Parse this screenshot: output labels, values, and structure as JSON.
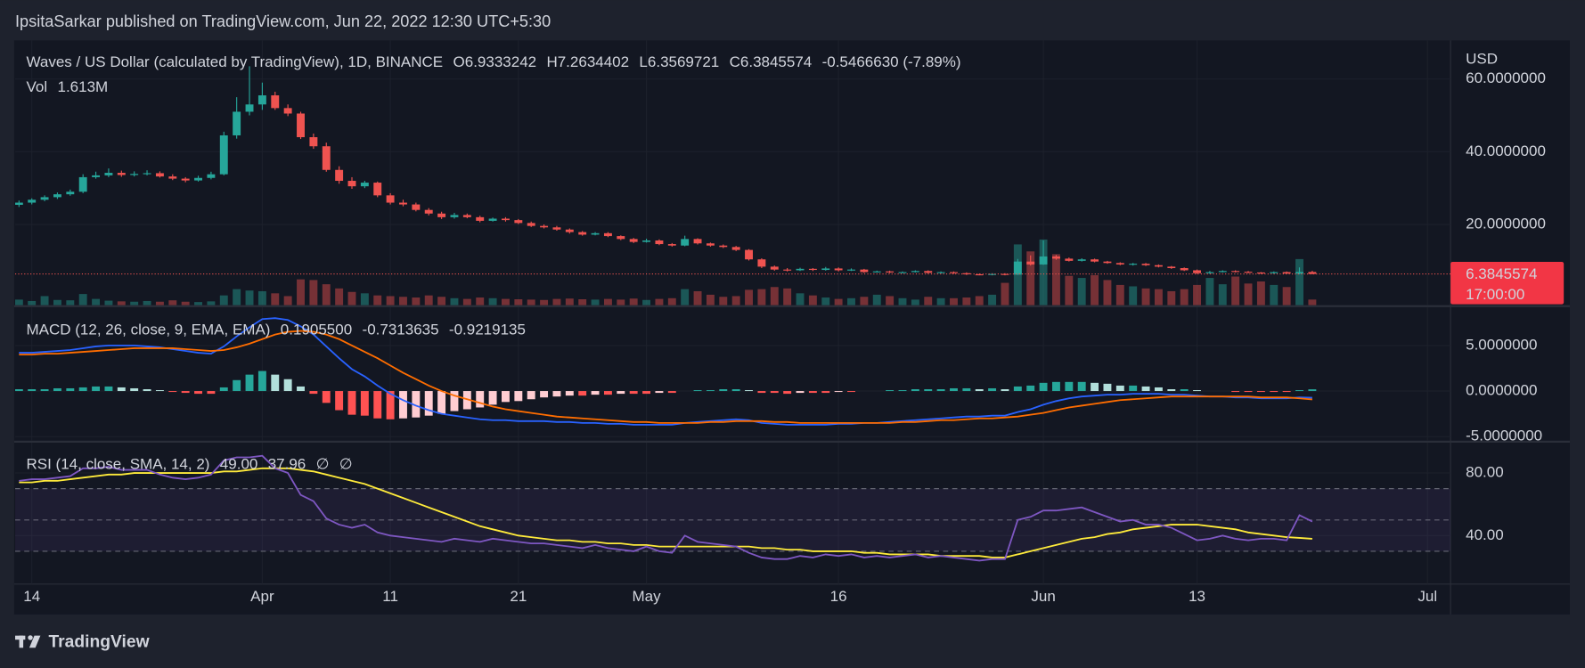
{
  "header": {
    "text": "IpsitaSarkar published on TradingView.com, Jun 22, 2022 12:30 UTC+5:30"
  },
  "footer": {
    "brand": "TradingView"
  },
  "chart_data": [
    {
      "type": "candlestick",
      "title": "Waves / US Dollar (calculated by TradingView), 1D, BINANCE",
      "legend_values": [
        "O6.9333242",
        "H7.2634402",
        "L6.3569721",
        "C6.3845574",
        "-0.5466630 (-7.89%)"
      ],
      "legend_colors": [
        "#f23645",
        "#f23645",
        "#f23645",
        "#f23645",
        "#f23645"
      ],
      "currency": "USD",
      "up_color": "#26a69a",
      "down_color": "#ef5350",
      "open": [
        25.4,
        26.0,
        26.8,
        27.5,
        28.3,
        29.0,
        33.0,
        33.5,
        34.2,
        33.6,
        33.9,
        34.1,
        33.2,
        32.6,
        32.1,
        32.8,
        33.8,
        44.5,
        51.0,
        53.0,
        55.5,
        52.0,
        50.5,
        44.0,
        41.5,
        35.0,
        32.0,
        30.5,
        31.5,
        28.0,
        26.0,
        25.5,
        24.0,
        23.0,
        22.0,
        22.6,
        22.0,
        21.0,
        21.6,
        21.2,
        20.4,
        19.6,
        19.2,
        18.6,
        17.9,
        17.2,
        17.6,
        16.8,
        16.0,
        15.2,
        15.6,
        14.6,
        14.2,
        16.0,
        14.8,
        14.2,
        13.8,
        13.0,
        10.4,
        8.4,
        7.6,
        7.4,
        7.8,
        7.5,
        7.9,
        7.4,
        7.6,
        6.9,
        7.1,
        6.8,
        6.9,
        7.2,
        6.7,
        6.9,
        6.6,
        6.3,
        6.2,
        6.4,
        6.2,
        9.8,
        9.0,
        11.2,
        10.6,
        10.0,
        10.4,
        9.8,
        9.4,
        9.0,
        9.2,
        8.8,
        8.4,
        8.0,
        7.4,
        6.6,
        6.9,
        7.2,
        7.0,
        6.8,
        6.6,
        6.9,
        6.5,
        6.9333242
      ],
      "high": [
        26.6,
        27.2,
        28.0,
        28.8,
        29.6,
        33.8,
        34.5,
        35.4,
        34.8,
        34.6,
        34.9,
        34.6,
        33.8,
        33.0,
        33.4,
        34.5,
        45.5,
        55.0,
        63.5,
        59.0,
        56.5,
        53.0,
        51.0,
        45.0,
        42.5,
        36.0,
        33.0,
        32.0,
        31.8,
        28.6,
        26.8,
        26.0,
        24.5,
        23.5,
        23.2,
        23.0,
        22.4,
        21.9,
        22.0,
        21.5,
        20.8,
        20.0,
        19.6,
        18.9,
        18.2,
        17.9,
        17.9,
        17.0,
        16.3,
        16.1,
        15.9,
        14.9,
        16.9,
        16.2,
        15.0,
        14.5,
        14.1,
        13.2,
        10.7,
        8.7,
        8.0,
        8.1,
        8.0,
        8.3,
        8.2,
        7.9,
        7.8,
        7.3,
        7.3,
        7.1,
        7.4,
        7.4,
        7.1,
        7.1,
        6.8,
        6.5,
        6.6,
        6.6,
        10.5,
        11.5,
        15.6,
        11.6,
        10.9,
        10.7,
        10.6,
        10.0,
        9.6,
        9.4,
        9.4,
        9.0,
        8.6,
        8.2,
        7.6,
        7.2,
        7.4,
        7.4,
        7.2,
        6.9,
        7.1,
        7.1,
        8.2,
        7.2634402
      ],
      "low": [
        24.8,
        25.5,
        26.4,
        27.0,
        27.9,
        28.6,
        32.6,
        33.0,
        33.1,
        33.2,
        33.5,
        32.9,
        32.2,
        31.6,
        31.8,
        32.4,
        33.5,
        43.6,
        50.0,
        51.5,
        51.5,
        49.8,
        43.5,
        40.8,
        34.5,
        31.2,
        29.8,
        30.0,
        27.5,
        25.5,
        25.0,
        23.6,
        22.5,
        21.5,
        21.6,
        21.7,
        20.6,
        20.8,
        20.8,
        20.1,
        19.3,
        18.9,
        18.3,
        17.5,
        16.9,
        17.0,
        16.5,
        15.7,
        14.9,
        15.0,
        14.3,
        13.9,
        14.0,
        14.5,
        13.9,
        13.5,
        12.7,
        10.1,
        8.0,
        7.3,
        7.1,
        7.2,
        7.2,
        7.3,
        7.1,
        7.2,
        6.7,
        6.8,
        6.6,
        6.6,
        6.8,
        6.5,
        6.5,
        6.4,
        6.1,
        6.0,
        6.0,
        6.0,
        6.1,
        8.7,
        8.9,
        10.3,
        9.8,
        9.8,
        9.6,
        9.2,
        8.8,
        8.7,
        8.6,
        8.2,
        7.8,
        7.2,
        6.4,
        6.4,
        6.8,
        6.8,
        6.6,
        6.4,
        6.4,
        6.4,
        6.3,
        6.3569721
      ],
      "close": [
        26.0,
        26.8,
        27.5,
        28.3,
        29.0,
        33.0,
        33.5,
        34.2,
        33.6,
        33.9,
        34.1,
        33.2,
        32.6,
        32.1,
        32.8,
        33.8,
        44.5,
        51.0,
        53.0,
        55.5,
        52.0,
        50.5,
        44.0,
        41.5,
        35.0,
        32.0,
        30.5,
        31.5,
        28.0,
        26.0,
        25.5,
        24.0,
        23.0,
        22.0,
        22.6,
        22.0,
        21.0,
        21.6,
        21.2,
        20.4,
        19.6,
        19.2,
        18.6,
        17.9,
        17.2,
        17.6,
        16.8,
        16.0,
        15.2,
        15.6,
        14.6,
        14.2,
        16.0,
        14.8,
        14.2,
        13.8,
        13.0,
        10.4,
        8.4,
        7.6,
        7.4,
        7.8,
        7.5,
        7.9,
        7.4,
        7.6,
        6.9,
        7.1,
        6.8,
        6.9,
        7.2,
        6.7,
        6.9,
        6.6,
        6.3,
        6.2,
        6.4,
        6.2,
        9.8,
        9.0,
        11.2,
        10.6,
        10.0,
        10.4,
        9.8,
        9.4,
        9.0,
        9.2,
        8.8,
        8.4,
        8.0,
        7.4,
        6.6,
        6.9,
        7.2,
        7.0,
        6.8,
        6.6,
        6.9,
        6.5,
        6.93,
        6.3845574
      ],
      "volume": {
        "name": "Vol",
        "last_label": "1.613M",
        "values": [
          1.6,
          1.2,
          2.6,
          1.5,
          1.4,
          3.2,
          1.8,
          1.3,
          1.1,
          1.0,
          1.2,
          1.0,
          1.4,
          1.0,
          0.9,
          1.1,
          2.8,
          4.6,
          4.2,
          4.0,
          3.4,
          2.6,
          7.4,
          7.2,
          6.0,
          4.8,
          3.8,
          3.4,
          2.8,
          2.6,
          2.4,
          2.2,
          2.8,
          2.4,
          2.0,
          1.8,
          2.2,
          2.0,
          1.8,
          1.7,
          1.6,
          1.5,
          1.8,
          1.9,
          1.7,
          1.6,
          1.8,
          1.6,
          1.9,
          1.5,
          1.8,
          2.0,
          4.6,
          4.0,
          3.0,
          2.4,
          2.6,
          4.4,
          4.6,
          5.2,
          4.8,
          3.4,
          2.8,
          2.2,
          1.8,
          2.0,
          2.4,
          3.0,
          2.6,
          2.0,
          1.6,
          2.4,
          2.0,
          2.0,
          2.2,
          2.6,
          3.0,
          6.4,
          17.4,
          15.4,
          18.8,
          14.6,
          8.4,
          7.8,
          8.6,
          7.2,
          5.8,
          5.4,
          4.8,
          4.6,
          4.0,
          4.6,
          5.8,
          7.8,
          6.0,
          8.2,
          6.2,
          6.8,
          5.8,
          5.2,
          13.2,
          1.613
        ]
      },
      "ylim": [
        -2.2,
        70.6
      ],
      "yticks": [
        {
          "value": 20,
          "label": "20.0000000"
        },
        {
          "value": 40,
          "label": "40.0000000"
        },
        {
          "value": 60,
          "label": "60.0000000"
        }
      ],
      "last_price": 6.3845574,
      "countdown": "17:00:00",
      "xlim": [
        -0.3,
        111.8
      ],
      "xticks": [
        {
          "value": 1,
          "label": "14"
        },
        {
          "value": 19,
          "label": "Apr"
        },
        {
          "value": 29,
          "label": "11"
        },
        {
          "value": 39,
          "label": "21"
        },
        {
          "value": 49,
          "label": "May"
        },
        {
          "value": 64,
          "label": "16"
        },
        {
          "value": 80,
          "label": "Jun"
        },
        {
          "value": 92,
          "label": "13"
        },
        {
          "value": 110,
          "label": "Jul"
        }
      ],
      "grid": true
    },
    {
      "type": "macd",
      "title": "MACD (12, 26, close, 9, EMA, EMA)",
      "legend_values": [
        "0.1905500",
        "-0.7313635",
        "-0.9219135"
      ],
      "legend_colors": [
        "#26a69a",
        "#2962ff",
        "#ff6d00"
      ],
      "histogram": {
        "colors": [
          "#26a69a",
          "#b2dfdb",
          "#ff5252",
          "#ffcdd2"
        ],
        "values": [
          0.2,
          0.2,
          0.2,
          0.3,
          0.3,
          0.4,
          0.5,
          0.5,
          0.4,
          0.3,
          0.2,
          0.1,
          -0.1,
          -0.2,
          -0.3,
          -0.3,
          0.4,
          1.2,
          1.8,
          2.2,
          1.8,
          1.3,
          0.5,
          -0.3,
          -1.3,
          -2.1,
          -2.6,
          -2.7,
          -3.0,
          -3.1,
          -3.0,
          -2.9,
          -2.7,
          -2.5,
          -2.2,
          -2.0,
          -1.8,
          -1.5,
          -1.2,
          -1.1,
          -0.9,
          -0.7,
          -0.6,
          -0.5,
          -0.5,
          -0.4,
          -0.4,
          -0.3,
          -0.3,
          -0.3,
          -0.2,
          -0.2,
          0.0,
          0.1,
          0.1,
          0.2,
          0.2,
          0.1,
          -0.2,
          -0.2,
          -0.3,
          -0.2,
          -0.2,
          -0.2,
          -0.1,
          -0.1,
          0.0,
          0.0,
          0.1,
          0.1,
          0.2,
          0.2,
          0.2,
          0.3,
          0.3,
          0.2,
          0.3,
          0.2,
          0.5,
          0.6,
          0.9,
          1.0,
          1.0,
          1.0,
          0.9,
          0.8,
          0.6,
          0.6,
          0.5,
          0.4,
          0.2,
          0.2,
          0.1,
          0.0,
          0.0,
          -0.1,
          -0.1,
          -0.1,
          -0.1,
          -0.1,
          0.1,
          0.19055
        ]
      },
      "macd": {
        "color": "#2962ff",
        "values": [
          4.2,
          4.2,
          4.3,
          4.4,
          4.5,
          4.7,
          4.9,
          5.0,
          5.0,
          5.0,
          4.9,
          4.8,
          4.6,
          4.4,
          4.2,
          4.1,
          4.9,
          6.0,
          7.0,
          7.9,
          8.0,
          7.8,
          7.1,
          6.2,
          4.9,
          3.6,
          2.4,
          1.6,
          0.6,
          -0.3,
          -1.0,
          -1.6,
          -2.1,
          -2.5,
          -2.7,
          -2.9,
          -3.1,
          -3.2,
          -3.2,
          -3.3,
          -3.3,
          -3.3,
          -3.4,
          -3.4,
          -3.5,
          -3.5,
          -3.6,
          -3.6,
          -3.7,
          -3.7,
          -3.7,
          -3.7,
          -3.5,
          -3.4,
          -3.3,
          -3.2,
          -3.1,
          -3.2,
          -3.5,
          -3.6,
          -3.7,
          -3.7,
          -3.7,
          -3.7,
          -3.6,
          -3.6,
          -3.5,
          -3.5,
          -3.4,
          -3.3,
          -3.2,
          -3.1,
          -3.0,
          -2.9,
          -2.8,
          -2.8,
          -2.7,
          -2.7,
          -2.3,
          -2.0,
          -1.5,
          -1.1,
          -0.8,
          -0.6,
          -0.5,
          -0.4,
          -0.4,
          -0.3,
          -0.3,
          -0.3,
          -0.4,
          -0.4,
          -0.5,
          -0.6,
          -0.6,
          -0.7,
          -0.7,
          -0.8,
          -0.8,
          -0.8,
          -0.7,
          -0.7313635
        ]
      },
      "signal": {
        "color": "#ff6d00",
        "values": [
          4.0,
          4.0,
          4.1,
          4.1,
          4.2,
          4.3,
          4.4,
          4.5,
          4.6,
          4.7,
          4.7,
          4.7,
          4.7,
          4.6,
          4.5,
          4.4,
          4.5,
          4.8,
          5.2,
          5.7,
          6.2,
          6.5,
          6.6,
          6.5,
          6.2,
          5.7,
          5.0,
          4.3,
          3.6,
          2.8,
          2.0,
          1.3,
          0.6,
          0.0,
          -0.5,
          -0.9,
          -1.3,
          -1.7,
          -2.0,
          -2.2,
          -2.4,
          -2.6,
          -2.8,
          -2.9,
          -3.0,
          -3.1,
          -3.2,
          -3.3,
          -3.4,
          -3.4,
          -3.5,
          -3.5,
          -3.5,
          -3.5,
          -3.4,
          -3.4,
          -3.3,
          -3.3,
          -3.3,
          -3.4,
          -3.4,
          -3.5,
          -3.5,
          -3.5,
          -3.5,
          -3.5,
          -3.5,
          -3.5,
          -3.5,
          -3.4,
          -3.4,
          -3.3,
          -3.2,
          -3.2,
          -3.1,
          -3.0,
          -3.0,
          -2.9,
          -2.8,
          -2.6,
          -2.4,
          -2.1,
          -1.8,
          -1.6,
          -1.4,
          -1.2,
          -1.0,
          -0.9,
          -0.8,
          -0.7,
          -0.6,
          -0.6,
          -0.6,
          -0.6,
          -0.6,
          -0.6,
          -0.6,
          -0.7,
          -0.7,
          -0.7,
          -0.8,
          -0.9219135
        ]
      },
      "ylim": [
        -5.44,
        9.2
      ],
      "yticks": [
        {
          "value": -5,
          "label": "-5.0000000"
        },
        {
          "value": 0,
          "label": "0.0000000"
        },
        {
          "value": 5,
          "label": "5.0000000"
        }
      ]
    },
    {
      "type": "rsi",
      "title": "RSI (14, close, SMA, 14, 2)",
      "legend_values": [
        "49.00",
        "37.96",
        "∅",
        "∅"
      ],
      "legend_colors": [
        "#7e57c2",
        "#ffeb3b",
        "#b2b5be",
        "#b2b5be"
      ],
      "rsi": {
        "color": "#7e57c2",
        "values": [
          75,
          76,
          76,
          77,
          78,
          83,
          83,
          84,
          82,
          82,
          82,
          79,
          77,
          76,
          77,
          79,
          88,
          90,
          90,
          91,
          83,
          80,
          66,
          62,
          51,
          47,
          45,
          47,
          42,
          40,
          39,
          38,
          37,
          36,
          38,
          37,
          36,
          38,
          37,
          36,
          35,
          35,
          34,
          33,
          32,
          34,
          32,
          31,
          30,
          33,
          30,
          29,
          40,
          36,
          35,
          34,
          33,
          29,
          26,
          25,
          25,
          27,
          26,
          28,
          27,
          28,
          26,
          27,
          26,
          27,
          28,
          26,
          27,
          26,
          25,
          24,
          25,
          25,
          50,
          52,
          56,
          56,
          57,
          58,
          55,
          52,
          49,
          50,
          47,
          47,
          45,
          41,
          37,
          38,
          40,
          38,
          37,
          38,
          38,
          37,
          53,
          49
        ]
      },
      "sma": {
        "color": "#ffeb3b",
        "values": [
          74,
          74,
          75,
          75,
          76,
          77,
          78,
          79,
          79,
          80,
          80,
          80,
          80,
          80,
          80,
          80,
          81,
          81,
          82,
          83,
          83,
          83,
          82,
          81,
          79,
          77,
          75,
          73,
          70,
          67,
          64,
          61,
          58,
          55,
          52,
          49,
          46,
          44,
          42,
          40,
          39,
          38,
          37,
          37,
          36,
          36,
          35,
          35,
          34,
          34,
          33,
          33,
          33,
          33,
          33,
          33,
          33,
          33,
          32,
          32,
          31,
          31,
          30,
          30,
          30,
          30,
          29,
          29,
          28,
          28,
          28,
          28,
          27,
          27,
          27,
          27,
          26,
          26,
          28,
          30,
          32,
          34,
          36,
          38,
          39,
          41,
          42,
          44,
          45,
          46,
          47,
          47,
          47,
          46,
          45,
          44,
          42,
          41,
          40,
          39,
          38.5,
          37.96
        ]
      },
      "band": [
        30,
        70
      ],
      "midline": 50,
      "band_color": "#7e57c2",
      "ylim": [
        9,
        99.4
      ],
      "yticks": [
        {
          "value": 40,
          "label": "40.00"
        },
        {
          "value": 80,
          "label": "80.00"
        }
      ]
    }
  ]
}
